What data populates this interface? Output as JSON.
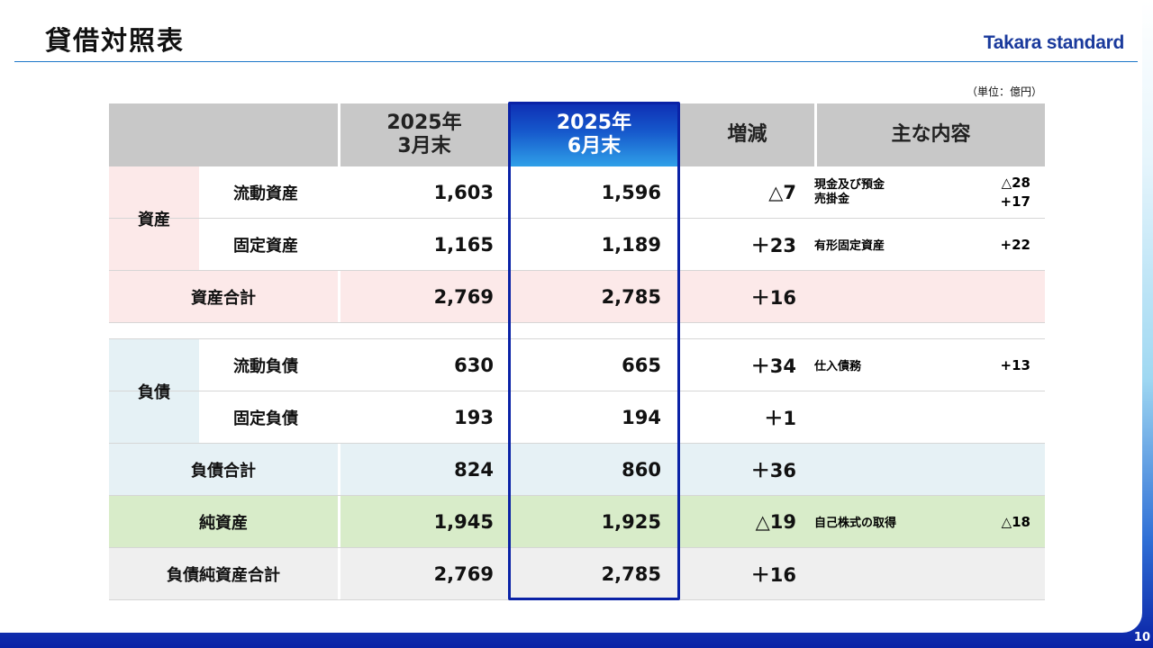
{
  "slide": {
    "title": "貸借対照表",
    "logo": "Takara standard",
    "unit_note": "（単位：億円）",
    "page_number": "10"
  },
  "table": {
    "header": {
      "prev_period": "2025年\n3月末",
      "curr_period": "2025年\n6月末",
      "change": "増減",
      "details": "主な内容"
    },
    "assets_group_label": "資産",
    "liabilities_group_label": "負債",
    "rows": [
      {
        "label": "流動資産",
        "prev": "1,603",
        "curr": "1,596",
        "change": "△7",
        "notes": [
          "現金及び預金",
          "売掛金"
        ],
        "note_values": [
          "△28",
          "+17"
        ]
      },
      {
        "label": "固定資産",
        "prev": "1,165",
        "curr": "1,189",
        "change": "＋23",
        "notes": [
          "有形固定資産"
        ],
        "note_values": [
          "+22"
        ]
      },
      {
        "label": "資産合計",
        "prev": "2,769",
        "curr": "2,785",
        "change": "＋16",
        "notes": [],
        "note_values": []
      },
      {
        "label": "流動負債",
        "prev": "630",
        "curr": "665",
        "change": "＋34",
        "notes": [
          "仕入債務"
        ],
        "note_values": [
          "+13"
        ]
      },
      {
        "label": "固定負債",
        "prev": "193",
        "curr": "194",
        "change": "＋1",
        "notes": [],
        "note_values": []
      },
      {
        "label": "負債合計",
        "prev": "824",
        "curr": "860",
        "change": "＋36",
        "notes": [],
        "note_values": []
      },
      {
        "label": "純資産",
        "prev": "1,945",
        "curr": "1,925",
        "change": "△19",
        "notes": [
          "自己株式の取得"
        ],
        "note_values": [
          "△18"
        ]
      },
      {
        "label": "負債純資産合計",
        "prev": "2,769",
        "curr": "2,785",
        "change": "＋16",
        "notes": [],
        "note_values": []
      }
    ]
  },
  "colors": {
    "assets_bg": "#fce9e9",
    "liabilities_bg": "#e5f1f5",
    "net_assets_bg": "#d8ecc9",
    "total_bg": "#efefef",
    "header_bg": "#c8c8c8",
    "highlight": "#0a22a6",
    "logo": "#1a3a9c"
  }
}
